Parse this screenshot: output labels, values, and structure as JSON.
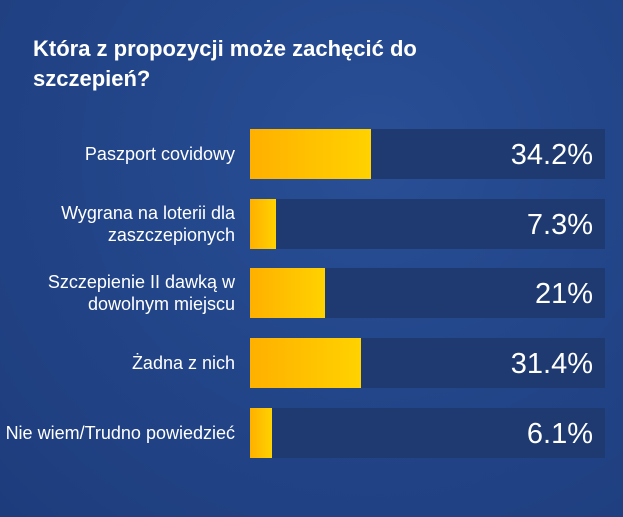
{
  "chart_data": {
    "type": "bar",
    "orientation": "horizontal",
    "title": "Która z propozycji może zachęcić do szczepień?",
    "categories": [
      "Paszport covidowy",
      "Wygrana na loterii dla zaszczepionych",
      "Szczepienie II dawką w dowolnym miejscu",
      "Żadna z nich",
      "Nie wiem/Trudno powiedzieć"
    ],
    "values": [
      34.2,
      7.3,
      21,
      31.4,
      6.1
    ],
    "value_labels": [
      "34.2%",
      "7.3%",
      "21%",
      "31.4%",
      "6.1%"
    ],
    "xlim": [
      0,
      100
    ],
    "colors": {
      "bar": "#ffc000",
      "track": "#1e3a70",
      "background": "#23468a"
    }
  }
}
